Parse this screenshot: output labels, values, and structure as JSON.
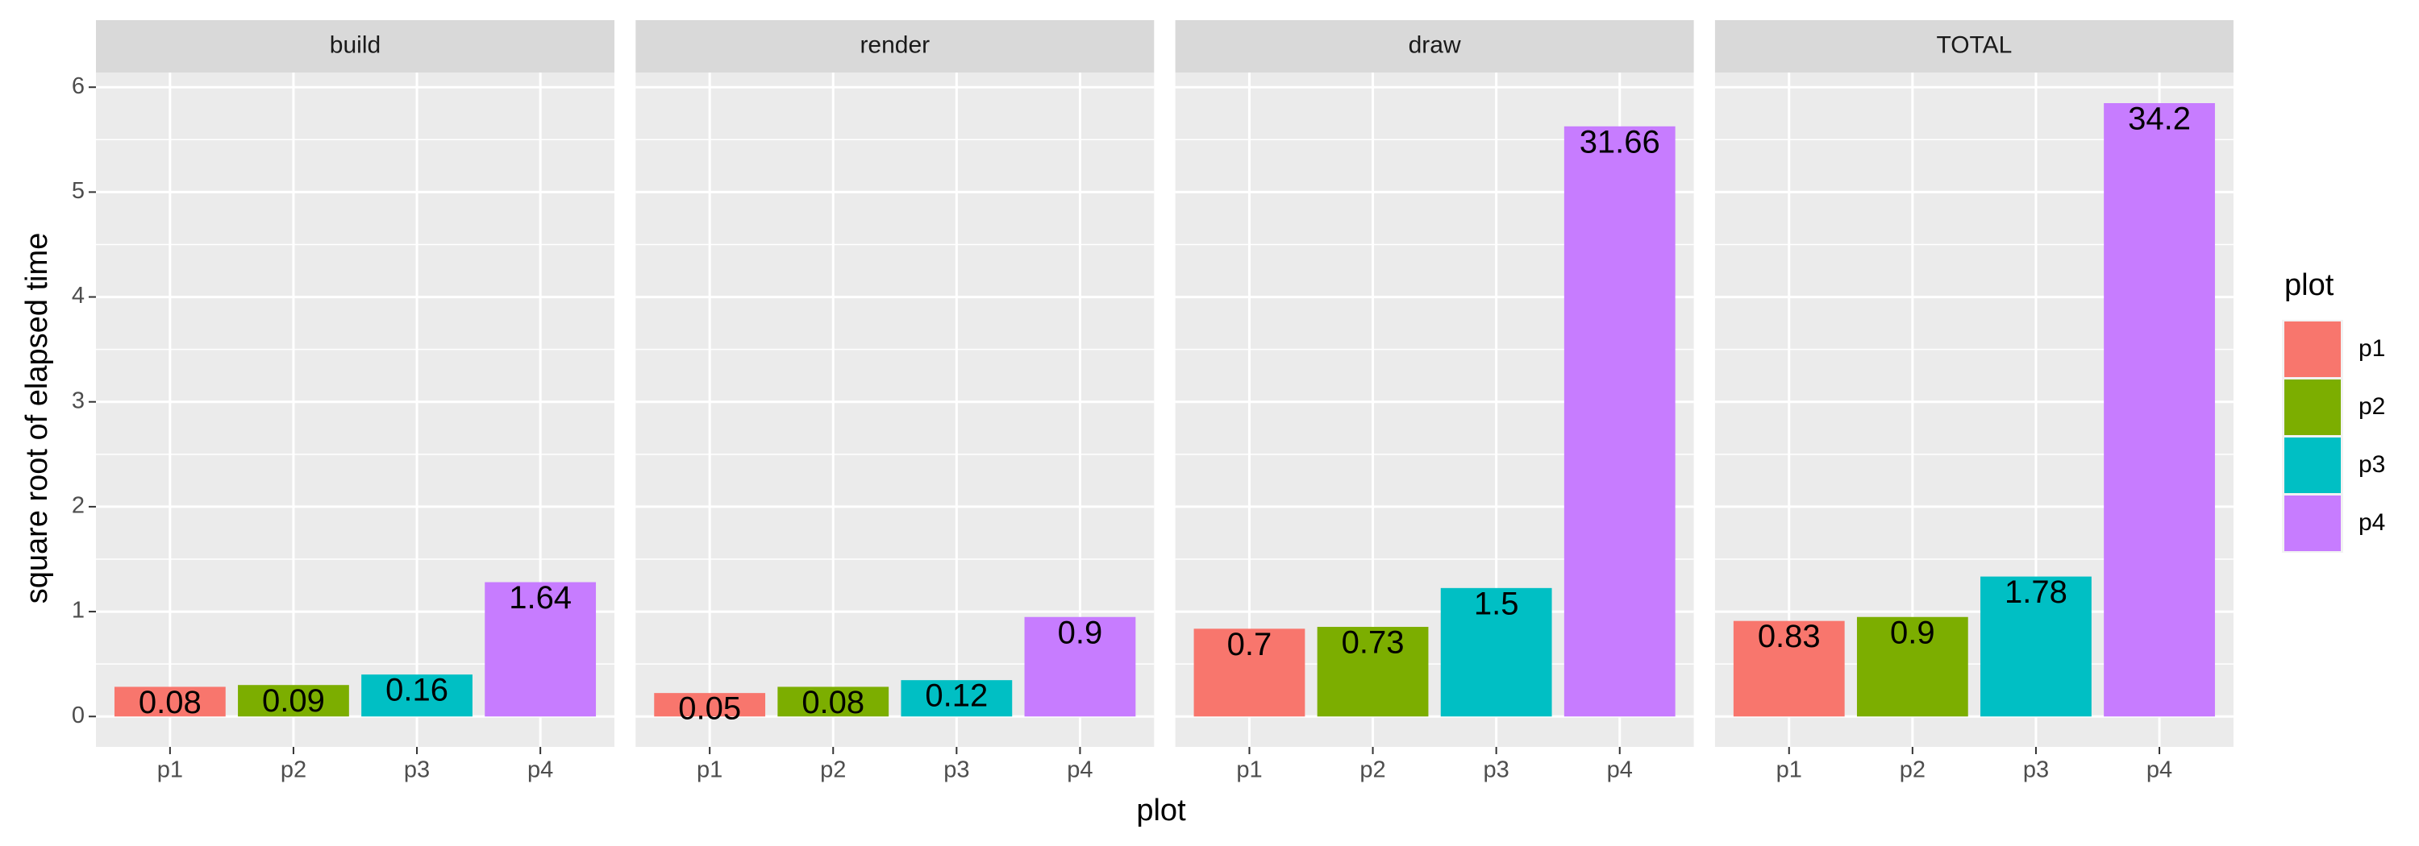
{
  "chart_data": {
    "type": "bar",
    "y_label": "square root of elapsed time",
    "x_label": "plot",
    "legend_title": "plot",
    "legend_position": "right",
    "grid": true,
    "categories": [
      "p1",
      "p2",
      "p3",
      "p4"
    ],
    "colors": [
      "#F8766D",
      "#7CAE00",
      "#00BFC4",
      "#C77CFF"
    ],
    "ylim": [
      -0.29,
      6.14
    ],
    "yticks": [
      0,
      1,
      2,
      3,
      4,
      5,
      6
    ],
    "facets": [
      {
        "title": "build",
        "values": [
          0.2828,
          0.3,
          0.4,
          1.2806
        ],
        "value_labels": [
          "0.08",
          "0.09",
          "0.16",
          "1.64"
        ]
      },
      {
        "title": "render",
        "values": [
          0.2236,
          0.2828,
          0.3464,
          0.9487
        ],
        "value_labels": [
          "0.05",
          "0.08",
          "0.12",
          "0.9"
        ]
      },
      {
        "title": "draw",
        "values": [
          0.8367,
          0.8544,
          1.2247,
          5.6267
        ],
        "value_labels": [
          "0.7",
          "0.73",
          "1.5",
          "31.66"
        ]
      },
      {
        "title": "TOTAL",
        "values": [
          0.911,
          0.9487,
          1.3342,
          5.848
        ],
        "value_labels": [
          "0.83",
          "0.9",
          "1.78",
          "34.2"
        ]
      }
    ]
  }
}
